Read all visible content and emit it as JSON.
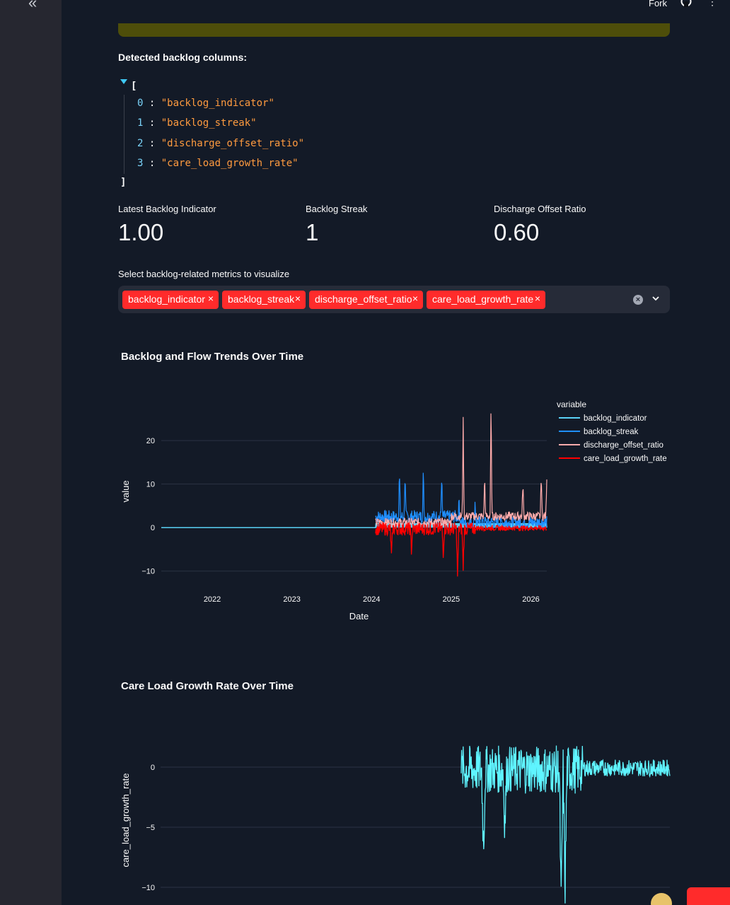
{
  "sidebar": {
    "collapse_glyph": "«"
  },
  "header": {
    "fork_label": "Fork",
    "menu_glyph": "⋮"
  },
  "detected": {
    "caption": "Detected backlog columns:",
    "open_bracket": "[",
    "close_bracket": "]",
    "items": [
      {
        "index": "0",
        "value": "\"backlog_indicator\""
      },
      {
        "index": "1",
        "value": "\"backlog_streak\""
      },
      {
        "index": "2",
        "value": "\"discharge_offset_ratio\""
      },
      {
        "index": "3",
        "value": "\"care_load_growth_rate\""
      }
    ]
  },
  "metrics": [
    {
      "label": "Latest Backlog Indicator",
      "value": "1.00"
    },
    {
      "label": "Backlog Streak",
      "value": "1"
    },
    {
      "label": "Discharge Offset Ratio",
      "value": "0.60"
    }
  ],
  "multiselect": {
    "label": "Select backlog-related metrics to visualize",
    "tags": [
      "backlog_indicator",
      "backlog_streak",
      "discharge_offset_ratio",
      "care_load_growth_rate"
    ],
    "remove_glyph": "×",
    "clear_glyph": "×"
  },
  "colors": {
    "accent": "#ff2b2b",
    "backlog_indicator": "#5ad1f5",
    "backlog_streak": "#1f8fff",
    "discharge_offset_ratio": "#ffabab",
    "care_load_growth_rate": "#ff0000",
    "care_chart_line": "#5ff4ff"
  },
  "chart_data": [
    {
      "type": "line",
      "title": "Backlog and Flow Trends Over Time",
      "xlabel": "Date",
      "ylabel": "value",
      "x_ticks": [
        "2022",
        "2023",
        "2024",
        "2025",
        "2026"
      ],
      "y_ticks": [
        "−10",
        "0",
        "10",
        "20"
      ],
      "xlim": [
        "2021-05-01",
        "2026-03-15"
      ],
      "ylim": [
        -12,
        27
      ],
      "legend_title": "variable",
      "legend_position": "right",
      "series": [
        {
          "name": "backlog_indicator",
          "summary": "0 from 2021-05 to 2024-02, then 0/1 daily"
        },
        {
          "name": "backlog_streak",
          "peaks": [
            [
              2024.35,
              10
            ],
            [
              2024.42,
              9.5
            ],
            [
              2024.65,
              10
            ],
            [
              2024.88,
              9.5
            ],
            [
              2025.1,
              4
            ],
            [
              2025.3,
              5
            ]
          ],
          "range": [
            0,
            10
          ]
        },
        {
          "name": "discharge_offset_ratio",
          "peaks": [
            [
              2025.15,
              23
            ],
            [
              2025.5,
              26
            ],
            [
              2025.42,
              9
            ],
            [
              2025.9,
              8
            ],
            [
              2026.13,
              10
            ],
            [
              2026.2,
              9
            ]
          ],
          "range": [
            0,
            26
          ]
        },
        {
          "name": "care_load_growth_rate",
          "troughs": [
            [
              2024.25,
              -6.5
            ],
            [
              2024.5,
              -5
            ],
            [
              2024.9,
              -5.5
            ],
            [
              2025.08,
              -11.5
            ],
            [
              2025.15,
              -9
            ]
          ],
          "range": [
            -11.5,
            2.5
          ]
        }
      ]
    },
    {
      "type": "line",
      "title": "Care Load Growth Rate Over Time",
      "xlabel": "",
      "ylabel": "care_load_growth_rate",
      "y_ticks": [
        "−10",
        "−5",
        "0"
      ],
      "ylim": [
        -11.5,
        3
      ],
      "series": [
        {
          "name": "care_load_growth_rate",
          "troughs": [
            [
              2024.28,
              -6.5
            ],
            [
              2024.5,
              -4.5
            ],
            [
              2025.08,
              -11.5
            ],
            [
              2025.12,
              -10
            ]
          ],
          "peaks": [
            [
              2024.2,
              2.5
            ],
            [
              2024.6,
              2.2
            ],
            [
              2025.2,
              1.8
            ]
          ],
          "range": [
            -11.5,
            2.5
          ]
        }
      ]
    }
  ]
}
